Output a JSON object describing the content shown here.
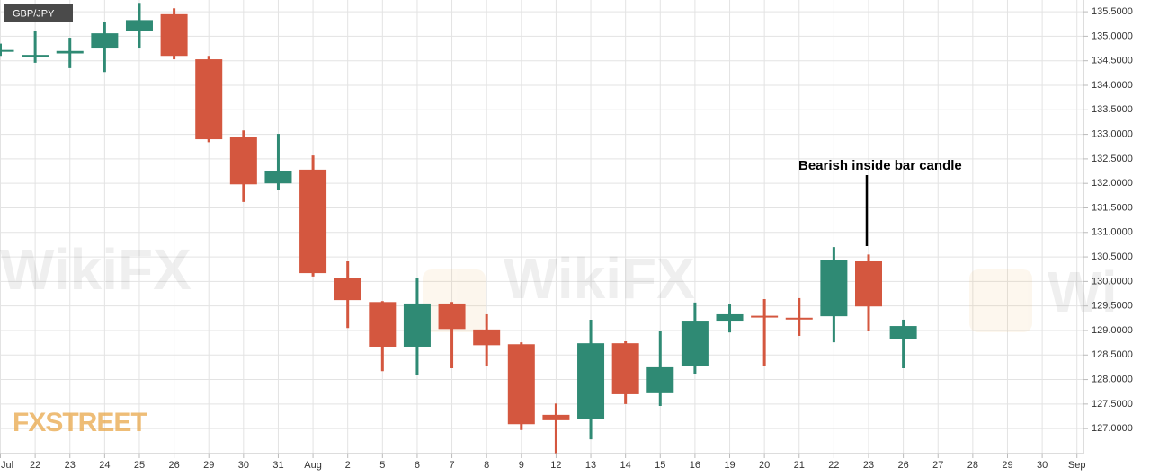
{
  "chart_data": {
    "type": "candlestick",
    "symbol": "GBP/JPY",
    "annotation": "Bearish inside bar candle",
    "brand": "FXSTREET",
    "categories": [
      "Jul",
      "22",
      "23",
      "24",
      "25",
      "26",
      "29",
      "30",
      "31",
      "Aug",
      "2",
      "5",
      "6",
      "7",
      "8",
      "9",
      "12",
      "13",
      "14",
      "15",
      "16",
      "19",
      "20",
      "21",
      "22",
      "23",
      "26",
      "27",
      "28",
      "29",
      "30",
      "Sep"
    ],
    "open": [
      134.7,
      134.6,
      134.65,
      134.75,
      135.1,
      135.45,
      134.53,
      132.94,
      132.0,
      132.28,
      130.08,
      129.58,
      128.67,
      129.55,
      129.02,
      128.72,
      127.28,
      127.19,
      128.74,
      127.72,
      128.28,
      129.2,
      129.3,
      129.26,
      129.29,
      130.41,
      128.83,
      null,
      null,
      null,
      null,
      null
    ],
    "high": [
      134.85,
      135.1,
      134.97,
      135.3,
      135.68,
      135.57,
      134.6,
      133.08,
      133.01,
      132.57,
      130.41,
      129.6,
      130.08,
      129.58,
      129.33,
      128.76,
      127.51,
      129.22,
      128.78,
      128.98,
      129.57,
      129.53,
      129.64,
      129.66,
      130.7,
      130.55,
      129.22,
      null,
      null,
      null,
      null,
      null
    ],
    "low": [
      134.6,
      134.46,
      134.35,
      134.27,
      134.75,
      134.53,
      132.84,
      131.62,
      131.86,
      130.1,
      129.05,
      128.17,
      128.1,
      128.23,
      128.27,
      126.97,
      126.49,
      126.78,
      127.5,
      127.46,
      128.12,
      128.96,
      128.27,
      128.89,
      128.76,
      128.99,
      128.23,
      null,
      null,
      null,
      null,
      null
    ],
    "close": [
      134.72,
      134.62,
      134.7,
      135.06,
      135.33,
      134.6,
      132.9,
      131.98,
      132.26,
      130.17,
      129.62,
      128.67,
      129.55,
      129.03,
      128.7,
      127.09,
      127.17,
      128.74,
      127.7,
      128.25,
      129.2,
      129.33,
      129.27,
      129.24,
      130.43,
      129.49,
      129.09,
      null,
      null,
      null,
      null,
      null
    ],
    "up_color": "#2f8a74",
    "down_color": "#d4573f",
    "ylim": [
      126.49,
      135.74
    ],
    "yticks": [
      {
        "value": 127.0,
        "label": "127.0000"
      },
      {
        "value": 127.5,
        "label": "127.5000"
      },
      {
        "value": 128.0,
        "label": "128.0000"
      },
      {
        "value": 128.5,
        "label": "128.5000"
      },
      {
        "value": 129.0,
        "label": "129.0000"
      },
      {
        "value": 129.5,
        "label": "129.5000"
      },
      {
        "value": 130.0,
        "label": "130.0000"
      },
      {
        "value": 130.5,
        "label": "130.5000"
      },
      {
        "value": 131.0,
        "label": "131.0000"
      },
      {
        "value": 131.5,
        "label": "131.5000"
      },
      {
        "value": 132.0,
        "label": "132.0000"
      },
      {
        "value": 132.5,
        "label": "132.5000"
      },
      {
        "value": 133.0,
        "label": "133.0000"
      },
      {
        "value": 133.5,
        "label": "133.5000"
      },
      {
        "value": 134.0,
        "label": "134.0000"
      },
      {
        "value": 134.5,
        "label": "134.5000"
      },
      {
        "value": 135.0,
        "label": "135.0000"
      },
      {
        "value": 135.5,
        "label": "135.5000"
      }
    ],
    "grid": true
  }
}
